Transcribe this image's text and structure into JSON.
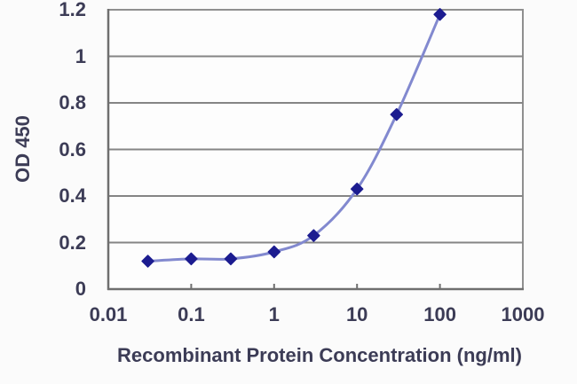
{
  "chart": {
    "ylabel": "OD 450",
    "xlabel": "Recombinant Protein Concentration (ng/ml)"
  },
  "chart_data": {
    "type": "line",
    "x": [
      0.03,
      0.1,
      0.3,
      1,
      3,
      10,
      30,
      100
    ],
    "series": [
      {
        "name": "OD 450",
        "values": [
          0.12,
          0.13,
          0.13,
          0.16,
          0.23,
          0.43,
          0.75,
          1.18
        ]
      }
    ],
    "title": "",
    "xlabel": "Recombinant Protein Concentration (ng/ml)",
    "ylabel": "OD 450",
    "x_scale": "log",
    "xlim": [
      0.01,
      1000
    ],
    "ylim": [
      0,
      1.2
    ],
    "x_tick_values": [
      0.01,
      0.1,
      1,
      10,
      100,
      1000
    ],
    "x_tick_labels": [
      "0.01",
      "0.1",
      "1",
      "10",
      "100",
      "1000"
    ],
    "y_tick_values": [
      0,
      0.2,
      0.4,
      0.6,
      0.8,
      1,
      1.2
    ],
    "y_tick_labels": [
      "0",
      "0.2",
      "0.4",
      "0.6",
      "0.8",
      "1",
      "1.2"
    ],
    "grid": "horizontal",
    "legend": "none",
    "marker": "diamond",
    "colors": {
      "line": "#8289cf",
      "marker": "#1c1c90",
      "grid": "#858585",
      "axis": "#6f6f6f",
      "border": "#8f8f8f",
      "text": "#3c3c56",
      "background": "#fbfbfb",
      "plot_background": "#fdfdfd"
    }
  }
}
